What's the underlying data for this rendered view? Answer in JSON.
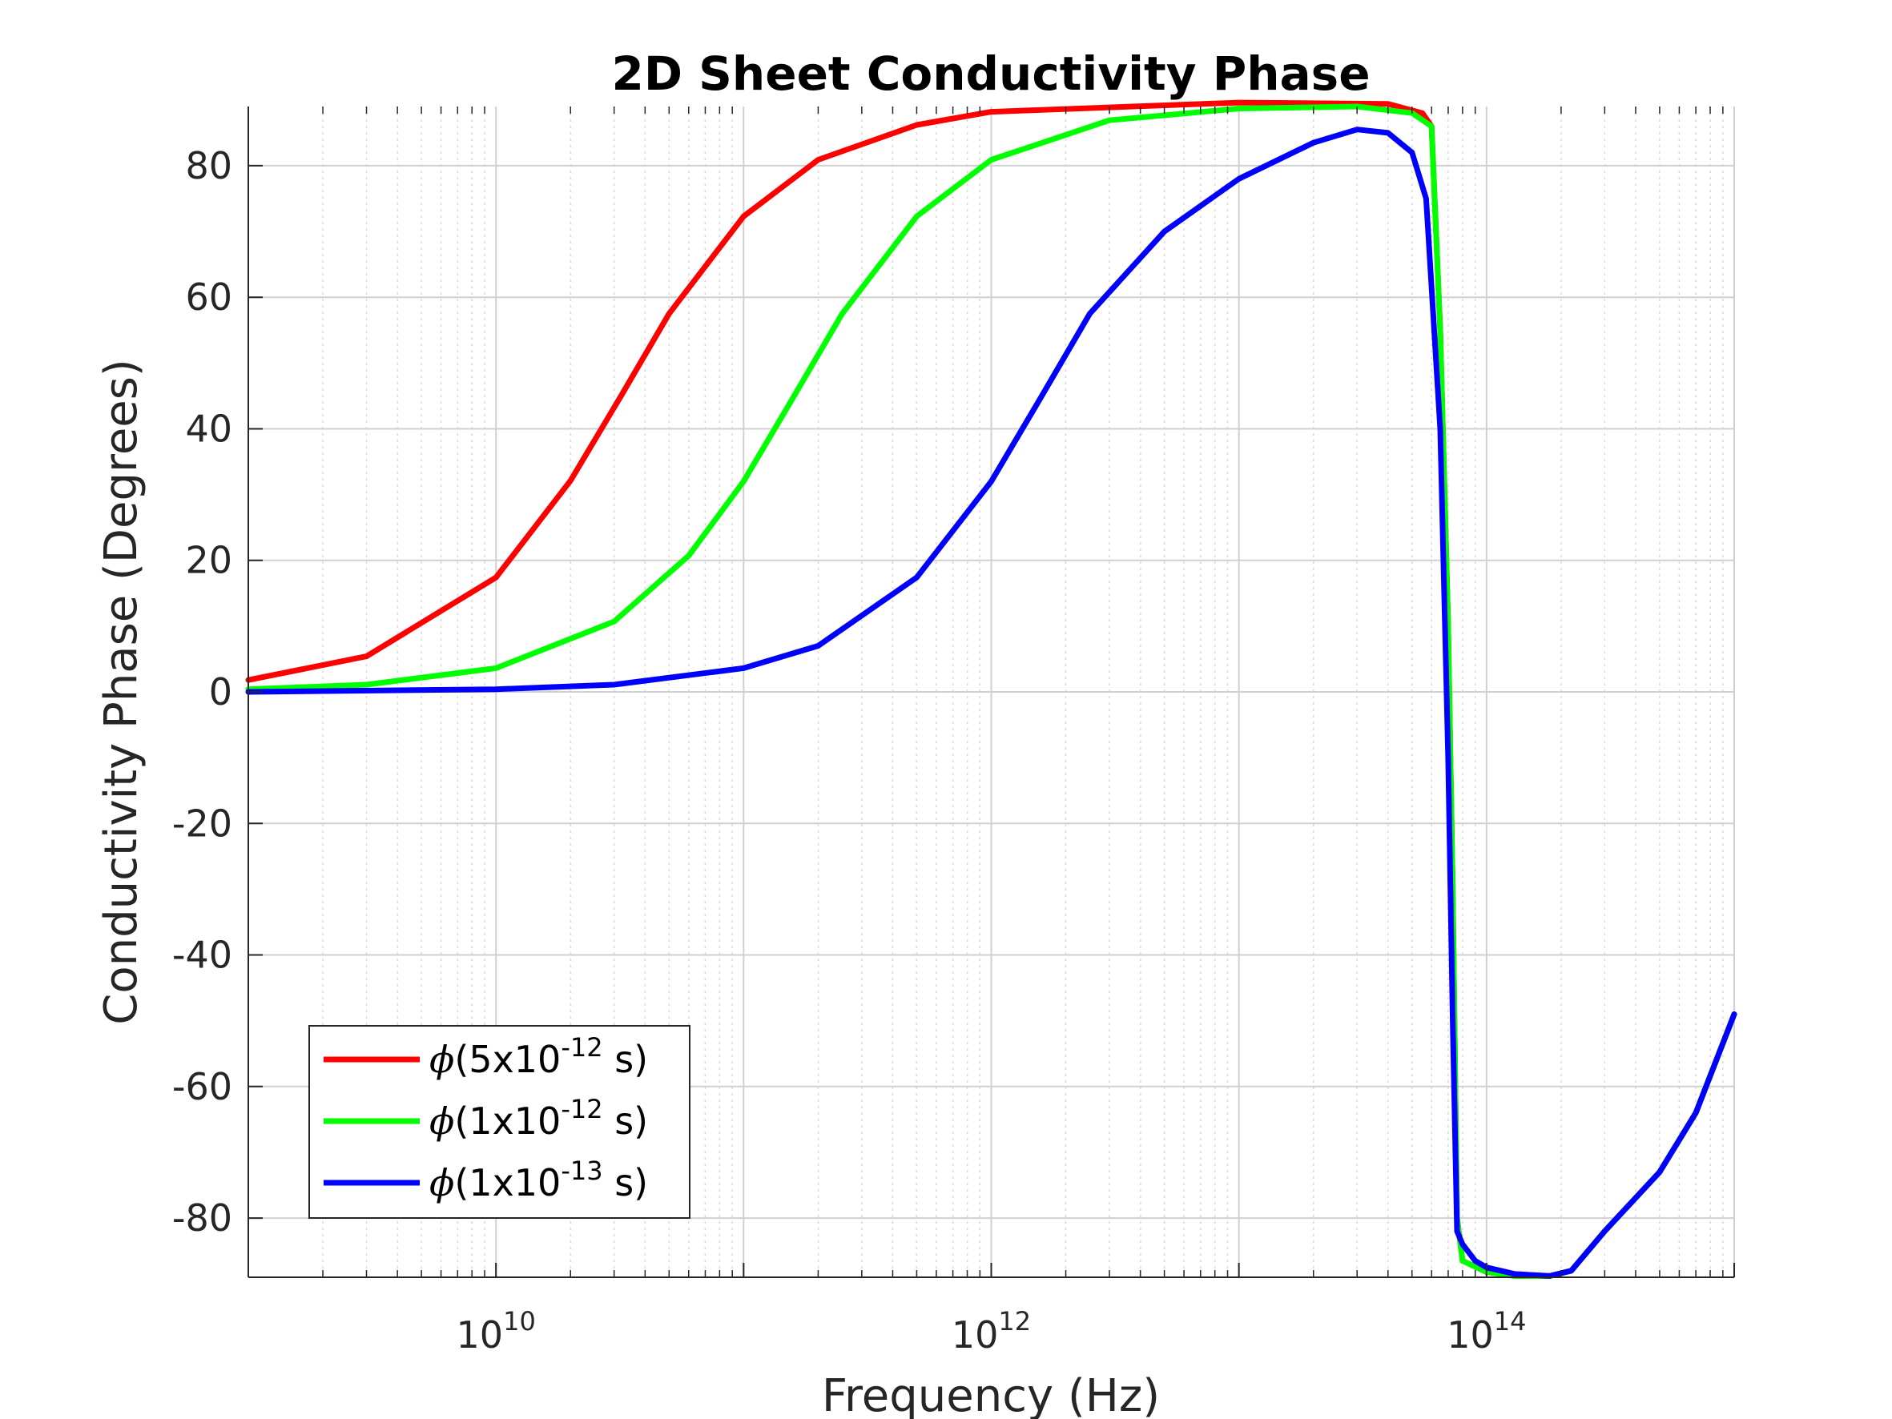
{
  "chart_data": {
    "type": "line",
    "title": "2D Sheet Conductivity Phase",
    "xlabel": "Frequency (Hz)",
    "ylabel": "Conductivity Phase (Degrees)",
    "xscale": "log",
    "xlim": [
      1000000000.0,
      1000000000000000.0
    ],
    "ylim": [
      -89,
      89
    ],
    "xticks": [
      {
        "value": 10000000000.0,
        "base": "10",
        "exp": "10"
      },
      {
        "value": 1000000000000.0,
        "base": "10",
        "exp": "12"
      },
      {
        "value": 100000000000000.0,
        "base": "10",
        "exp": "14"
      }
    ],
    "yticks": [
      {
        "value": 80,
        "label": "80"
      },
      {
        "value": 60,
        "label": "60"
      },
      {
        "value": 40,
        "label": "40"
      },
      {
        "value": 20,
        "label": "20"
      },
      {
        "value": 0,
        "label": "0"
      },
      {
        "value": -20,
        "label": "-20"
      },
      {
        "value": -40,
        "label": "-40"
      },
      {
        "value": -60,
        "label": "-60"
      },
      {
        "value": -80,
        "label": "-80"
      }
    ],
    "grid": true,
    "legend_position": "bottom-left",
    "series": [
      {
        "name": "ϕ(5x10-12 s)",
        "legend": {
          "symbol": "ϕ",
          "pre": "(5x10",
          "sup": "-12",
          "post": " s)"
        },
        "color": "#ff0000",
        "points": [
          [
            1000000000.0,
            1.8
          ],
          [
            3000000000.0,
            5.4
          ],
          [
            10000000000.0,
            17.4
          ],
          [
            20000000000.0,
            32.1
          ],
          [
            32000000000.0,
            45.0
          ],
          [
            50000000000.0,
            57.5
          ],
          [
            100000000000.0,
            72.3
          ],
          [
            200000000000.0,
            80.9
          ],
          [
            500000000000.0,
            86.2
          ],
          [
            1000000000000.0,
            88.2
          ],
          [
            10000000000000.0,
            89.6
          ],
          [
            40000000000000.0,
            89.4
          ],
          [
            55000000000000.0,
            88.0
          ],
          [
            60000000000000.0,
            86.0
          ],
          [
            65000000000000.0,
            55.0
          ],
          [
            70000000000000.0,
            10.0
          ],
          [
            73000000000000.0,
            -30.0
          ],
          [
            76000000000000.0,
            -80.0
          ],
          [
            80000000000000.0,
            -86.5
          ],
          [
            100000000000000.0,
            -88.2
          ],
          [
            130000000000000.0,
            -88.8
          ],
          [
            180000000000000.0,
            -88.8
          ],
          [
            220000000000000.0,
            -88.0
          ],
          [
            300000000000000.0,
            -82.0
          ],
          [
            500000000000000.0,
            -73.0
          ],
          [
            700000000000000.0,
            -64.0
          ],
          [
            1000000000000000.0,
            -49.0
          ]
        ]
      },
      {
        "name": "ϕ(1x10-12 s)",
        "legend": {
          "symbol": "ϕ",
          "pre": "(1x10",
          "sup": "-12",
          "post": " s)"
        },
        "color": "#00ff00",
        "points": [
          [
            1000000000.0,
            0.4
          ],
          [
            3000000000.0,
            1.1
          ],
          [
            10000000000.0,
            3.6
          ],
          [
            30000000000.0,
            10.7
          ],
          [
            60000000000.0,
            20.7
          ],
          [
            100000000000.0,
            32.0
          ],
          [
            160000000000.0,
            45.0
          ],
          [
            250000000000.0,
            57.5
          ],
          [
            500000000000.0,
            72.3
          ],
          [
            1000000000000.0,
            80.9
          ],
          [
            3000000000000.0,
            86.9
          ],
          [
            10000000000000.0,
            88.7
          ],
          [
            30000000000000.0,
            89.0
          ],
          [
            50000000000000.0,
            88.0
          ],
          [
            60000000000000.0,
            86.0
          ],
          [
            65000000000000.0,
            55.0
          ],
          [
            70000000000000.0,
            10.0
          ],
          [
            73000000000000.0,
            -30.0
          ],
          [
            76000000000000.0,
            -80.0
          ],
          [
            80000000000000.0,
            -86.5
          ],
          [
            100000000000000.0,
            -88.2
          ],
          [
            130000000000000.0,
            -88.8
          ],
          [
            180000000000000.0,
            -88.8
          ],
          [
            220000000000000.0,
            -88.0
          ],
          [
            300000000000000.0,
            -82.0
          ],
          [
            500000000000000.0,
            -73.0
          ],
          [
            700000000000000.0,
            -64.0
          ],
          [
            1000000000000000.0,
            -49.0
          ]
        ]
      },
      {
        "name": "ϕ(1x10-13 s)",
        "legend": {
          "symbol": "ϕ",
          "pre": "(1x10",
          "sup": "-13",
          "post": " s)"
        },
        "color": "#0000ff",
        "points": [
          [
            1000000000.0,
            0.0
          ],
          [
            10000000000.0,
            0.4
          ],
          [
            30000000000.0,
            1.1
          ],
          [
            100000000000.0,
            3.6
          ],
          [
            200000000000.0,
            7.0
          ],
          [
            500000000000.0,
            17.4
          ],
          [
            1000000000000.0,
            32.0
          ],
          [
            1600000000000.0,
            45.0
          ],
          [
            2500000000000.0,
            57.5
          ],
          [
            5000000000000.0,
            70.0
          ],
          [
            10000000000000.0,
            78.0
          ],
          [
            20000000000000.0,
            83.5
          ],
          [
            30000000000000.0,
            85.5
          ],
          [
            40000000000000.0,
            85.0
          ],
          [
            50000000000000.0,
            82.0
          ],
          [
            57000000000000.0,
            75.0
          ],
          [
            65000000000000.0,
            40.0
          ],
          [
            70000000000000.0,
            -10.0
          ],
          [
            73000000000000.0,
            -50.0
          ],
          [
            76000000000000.0,
            -82.0
          ],
          [
            80000000000000.0,
            -84.0
          ],
          [
            90000000000000.0,
            -86.5
          ],
          [
            100000000000000.0,
            -87.5
          ],
          [
            130000000000000.0,
            -88.5
          ],
          [
            180000000000000.0,
            -88.8
          ],
          [
            220000000000000.0,
            -88.0
          ],
          [
            300000000000000.0,
            -82.0
          ],
          [
            500000000000000.0,
            -73.0
          ],
          [
            700000000000000.0,
            -64.0
          ],
          [
            1000000000000000.0,
            -49.0
          ]
        ]
      }
    ]
  }
}
